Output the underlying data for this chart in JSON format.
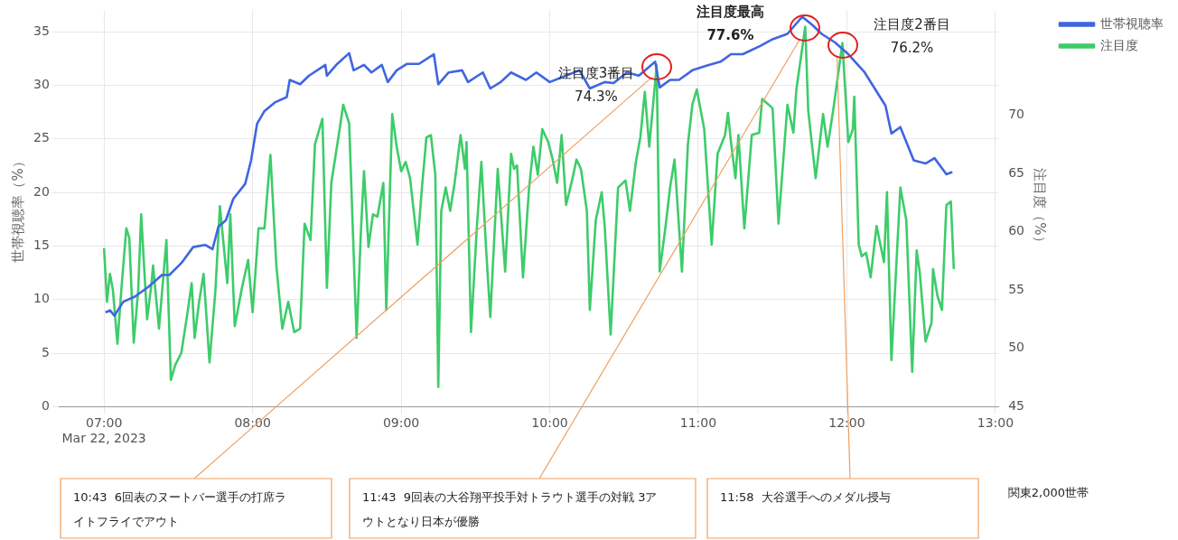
{
  "chart_data": {
    "type": "line",
    "ylabel": "世帯視聴率（%）",
    "y2label": "注目度（%）",
    "xlim": [
      6.7,
      13.02
    ],
    "xticks": [
      {
        "value": 7,
        "label": "07:00\nMar 22, 2023"
      },
      {
        "value": 8,
        "label": "08:00"
      },
      {
        "value": 9,
        "label": "09:00"
      },
      {
        "value": 10,
        "label": "10:00"
      },
      {
        "value": 11,
        "label": "11:00"
      },
      {
        "value": 12,
        "label": "12:00"
      },
      {
        "value": 13,
        "label": "13:00"
      }
    ],
    "ylim": [
      0,
      37
    ],
    "yticks": [
      0,
      5,
      10,
      15,
      20,
      25,
      30,
      35
    ],
    "y2lim": [
      45,
      79
    ],
    "y2ticks": [
      45,
      50,
      55,
      60,
      65,
      70
    ],
    "grid": true,
    "legend": "top right",
    "series": [
      {
        "name": "世帯視聴率",
        "color": "#3f66e0",
        "x": [
          7.01,
          7.04,
          7.07,
          7.13,
          7.21,
          7.3,
          7.39,
          7.44,
          7.52,
          7.6,
          7.68,
          7.73,
          7.77,
          7.82,
          7.87,
          7.95,
          7.99,
          8.03,
          8.08,
          8.15,
          8.23,
          8.25,
          8.32,
          8.38,
          8.49,
          8.5,
          8.57,
          8.65,
          8.68,
          8.75,
          8.8,
          8.87,
          8.91,
          8.97,
          9.04,
          9.12,
          9.22,
          9.25,
          9.32,
          9.41,
          9.45,
          9.55,
          9.6,
          9.67,
          9.74,
          9.84,
          9.91,
          10.0,
          10.11,
          10.2,
          10.27,
          10.37,
          10.43,
          10.52,
          10.6,
          10.71,
          10.74,
          10.81,
          10.87,
          10.96,
          11.05,
          11.15,
          11.22,
          11.3,
          11.42,
          11.5,
          11.6,
          11.7,
          11.77,
          11.83,
          11.92,
          12.01,
          12.12,
          12.26,
          12.3,
          12.36,
          12.45,
          12.53,
          12.59,
          12.67,
          12.71
        ],
        "values": [
          8.8,
          9.0,
          8.5,
          9.8,
          10.3,
          11.2,
          12.3,
          12.3,
          13.4,
          14.9,
          15.1,
          14.7,
          16.8,
          17.4,
          19.4,
          20.8,
          23.0,
          26.4,
          27.6,
          28.4,
          28.9,
          30.5,
          30.1,
          30.9,
          31.9,
          30.9,
          32.0,
          33.0,
          31.4,
          31.9,
          31.2,
          31.9,
          30.3,
          31.4,
          32.0,
          32.0,
          32.9,
          30.1,
          31.2,
          31.4,
          30.3,
          31.2,
          29.7,
          30.3,
          31.2,
          30.5,
          31.2,
          30.3,
          30.9,
          31.4,
          29.7,
          30.3,
          30.2,
          31.2,
          30.9,
          32.2,
          29.8,
          30.5,
          30.5,
          31.4,
          31.8,
          32.2,
          32.9,
          32.9,
          33.7,
          34.3,
          34.8,
          36.4,
          35.6,
          34.8,
          34.0,
          32.9,
          31.2,
          28.1,
          25.5,
          26.1,
          23.0,
          22.7,
          23.2,
          21.7,
          21.9
        ]
      },
      {
        "name": "注目度",
        "color": "#3dcc6a",
        "axis": "y2",
        "x": [
          7.0,
          7.02,
          7.04,
          7.06,
          7.09,
          7.12,
          7.15,
          7.17,
          7.2,
          7.23,
          7.25,
          7.29,
          7.32,
          7.33,
          7.37,
          7.42,
          7.45,
          7.48,
          7.52,
          7.56,
          7.59,
          7.61,
          7.64,
          7.67,
          7.71,
          7.75,
          7.78,
          7.83,
          7.85,
          7.88,
          7.93,
          7.97,
          8.0,
          8.04,
          8.08,
          8.12,
          8.16,
          8.2,
          8.24,
          8.28,
          8.32,
          8.35,
          8.39,
          8.42,
          8.47,
          8.5,
          8.53,
          8.58,
          8.61,
          8.65,
          8.7,
          8.73,
          8.75,
          8.78,
          8.81,
          8.84,
          8.88,
          8.9,
          8.94,
          8.97,
          9.0,
          9.03,
          9.06,
          9.11,
          9.14,
          9.17,
          9.2,
          9.23,
          9.25,
          9.27,
          9.3,
          9.33,
          9.36,
          9.4,
          9.43,
          9.44,
          9.47,
          9.51,
          9.54,
          9.57,
          9.6,
          9.63,
          9.65,
          9.7,
          9.74,
          9.76,
          9.78,
          9.82,
          9.86,
          9.89,
          9.92,
          9.95,
          9.99,
          10.02,
          10.05,
          10.08,
          10.11,
          10.15,
          10.18,
          10.21,
          10.25,
          10.27,
          10.31,
          10.35,
          10.37,
          10.41,
          10.46,
          10.51,
          10.54,
          10.58,
          10.61,
          10.64,
          10.67,
          10.72,
          10.74,
          10.78,
          10.81,
          10.84,
          10.89,
          10.93,
          10.96,
          10.99,
          11.04,
          11.09,
          11.13,
          11.18,
          11.2,
          11.22,
          11.25,
          11.27,
          11.31,
          11.36,
          11.41,
          11.43,
          11.5,
          11.54,
          11.6,
          11.64,
          11.66,
          11.72,
          11.74,
          11.79,
          11.84,
          11.87,
          11.91,
          11.97,
          12.01,
          12.04,
          12.05,
          12.08,
          12.1,
          12.13,
          12.16,
          12.2,
          12.25,
          12.27,
          12.3,
          12.36,
          12.4,
          12.44,
          12.47,
          12.49,
          12.53,
          12.57,
          12.58,
          12.61,
          12.64,
          12.67,
          12.7,
          12.72
        ],
        "values": [
          58.6,
          54.0,
          56.4,
          55.0,
          50.4,
          55.6,
          60.3,
          59.5,
          50.5,
          55.0,
          61.5,
          52.5,
          55.6,
          57.1,
          51.7,
          59.3,
          47.3,
          48.6,
          49.6,
          52.9,
          55.6,
          50.9,
          54.0,
          56.4,
          48.8,
          55.0,
          62.2,
          55.6,
          61.5,
          51.9,
          55.3,
          57.6,
          53.1,
          60.3,
          60.3,
          66.6,
          57.1,
          51.7,
          54.0,
          51.4,
          51.7,
          60.7,
          59.3,
          67.5,
          69.7,
          55.2,
          64.2,
          68.3,
          70.9,
          69.3,
          50.9,
          60.3,
          65.2,
          58.7,
          61.5,
          61.3,
          64.2,
          53.3,
          70.1,
          67.3,
          65.2,
          66.0,
          64.6,
          58.9,
          63.8,
          68.1,
          68.3,
          64.9,
          46.7,
          61.8,
          63.8,
          61.8,
          64.2,
          68.3,
          65.4,
          67.7,
          51.4,
          60.5,
          66.0,
          58.9,
          52.7,
          60.3,
          65.4,
          56.6,
          66.7,
          65.4,
          65.7,
          56.1,
          63.6,
          67.3,
          64.9,
          68.8,
          67.7,
          66.2,
          64.2,
          68.3,
          62.3,
          64.4,
          66.2,
          65.4,
          61.8,
          53.3,
          61.0,
          63.4,
          60.5,
          51.2,
          63.8,
          64.4,
          61.8,
          66.0,
          68.1,
          72.0,
          67.3,
          74.3,
          56.6,
          60.5,
          63.8,
          66.2,
          56.6,
          67.5,
          70.9,
          72.2,
          68.8,
          58.9,
          66.7,
          68.3,
          70.2,
          67.7,
          64.6,
          68.3,
          60.3,
          68.3,
          68.5,
          71.4,
          70.6,
          60.7,
          70.9,
          68.5,
          72.2,
          77.6,
          70.4,
          64.6,
          70.1,
          67.3,
          70.6,
          76.2,
          67.7,
          68.8,
          71.6,
          58.9,
          57.9,
          58.2,
          56.1,
          60.5,
          57.4,
          63.4,
          49.0,
          63.8,
          61.0,
          48.0,
          58.4,
          56.6,
          50.6,
          52.2,
          56.8,
          54.5,
          53.3,
          62.3,
          62.6,
          56.8
        ]
      }
    ],
    "annotations": [
      "注目度3番目\n74.3%",
      "注目度最高\n77.6%",
      "注目度2番目\n76.2%",
      "10:43  6回表のヌートバー選手の打席ライトフライでアウト",
      "11:43  9回表の大谷翔平投手対トラウト選手の対戦 3アウトとなり日本が優勝",
      "11:58  大谷選手へのメダル授与",
      "関東2,000世帯"
    ]
  }
}
